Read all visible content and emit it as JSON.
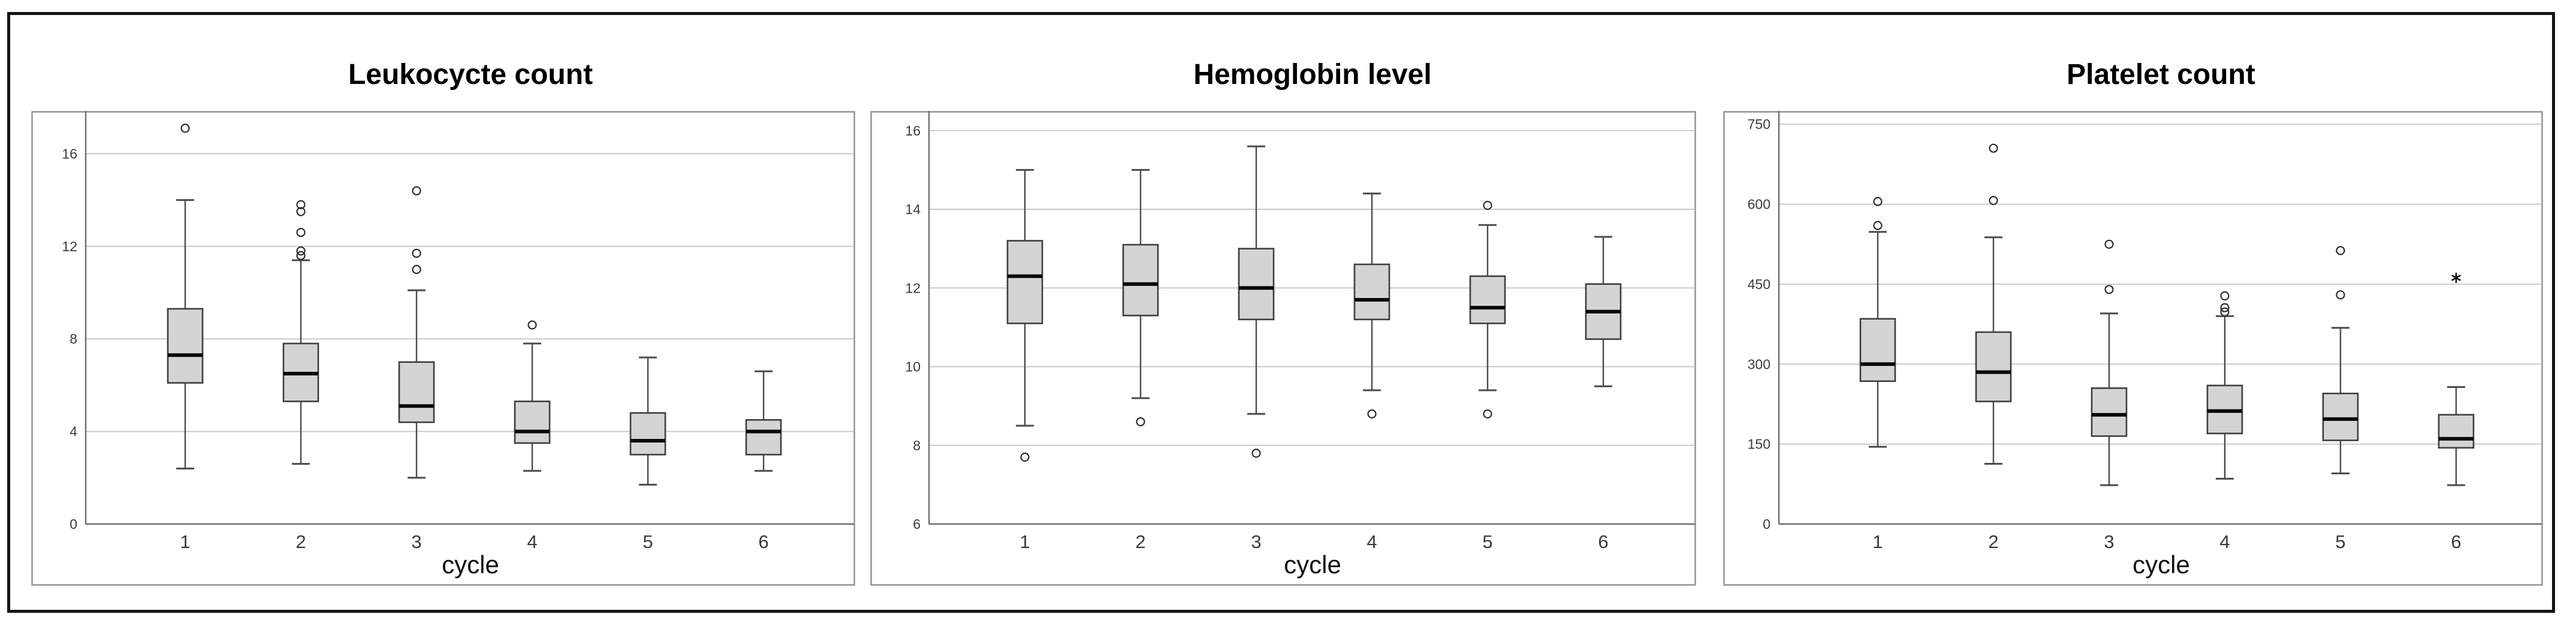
{
  "figure": {
    "background": "#ffffff",
    "border_color": "#141414",
    "box_fill_color": "#d4d4d4",
    "gridline_color": "#cacaca",
    "axis_color": "#6d6d6d",
    "outlier_marker": "circle-icon",
    "extreme_marker": "star-icon"
  },
  "chart_data": [
    {
      "type": "box",
      "title": "Leukocycte count",
      "xlabel": "cycle",
      "categories": [
        "1",
        "2",
        "3",
        "4",
        "5",
        "6"
      ],
      "yticks": [
        0,
        4,
        8,
        12,
        16
      ],
      "ylim": [
        0,
        17.85
      ],
      "grid": true,
      "boxes": [
        {
          "low": 2.4,
          "q1": 6.1,
          "median": 7.3,
          "q3": 9.3,
          "high": 14.0,
          "outliers": [
            17.1
          ],
          "extremes": []
        },
        {
          "low": 2.6,
          "q1": 5.3,
          "median": 6.5,
          "q3": 7.8,
          "high": 11.4,
          "outliers": [
            13.8,
            13.5,
            12.6,
            11.8,
            11.6
          ],
          "extremes": []
        },
        {
          "low": 2.0,
          "q1": 4.4,
          "median": 5.1,
          "q3": 7.0,
          "high": 10.1,
          "outliers": [
            14.4,
            11.7,
            11.0
          ],
          "extremes": []
        },
        {
          "low": 2.3,
          "q1": 3.5,
          "median": 4.0,
          "q3": 5.3,
          "high": 7.8,
          "outliers": [
            8.6
          ],
          "extremes": []
        },
        {
          "low": 1.7,
          "q1": 3.0,
          "median": 3.6,
          "q3": 4.8,
          "high": 7.2,
          "outliers": [],
          "extremes": []
        },
        {
          "low": 2.3,
          "q1": 3.0,
          "median": 4.0,
          "q3": 4.5,
          "high": 6.6,
          "outliers": [],
          "extremes": []
        }
      ]
    },
    {
      "type": "box",
      "title": "Hemoglobin level",
      "xlabel": "cycle",
      "categories": [
        "1",
        "2",
        "3",
        "4",
        "5",
        "6"
      ],
      "yticks": [
        6,
        8,
        10,
        12,
        14,
        16
      ],
      "ylim": [
        6,
        16.5
      ],
      "grid": true,
      "boxes": [
        {
          "low": 8.5,
          "q1": 11.1,
          "median": 12.3,
          "q3": 13.2,
          "high": 15.0,
          "outliers": [
            7.7
          ],
          "extremes": []
        },
        {
          "low": 9.2,
          "q1": 11.3,
          "median": 12.1,
          "q3": 13.1,
          "high": 15.0,
          "outliers": [
            8.6
          ],
          "extremes": []
        },
        {
          "low": 8.8,
          "q1": 11.2,
          "median": 12.0,
          "q3": 13.0,
          "high": 15.6,
          "outliers": [
            7.8
          ],
          "extremes": []
        },
        {
          "low": 9.4,
          "q1": 11.2,
          "median": 11.7,
          "q3": 12.6,
          "high": 14.4,
          "outliers": [
            8.8
          ],
          "extremes": []
        },
        {
          "low": 9.4,
          "q1": 11.1,
          "median": 11.5,
          "q3": 12.3,
          "high": 13.6,
          "outliers": [
            14.1,
            8.8
          ],
          "extremes": []
        },
        {
          "low": 9.5,
          "q1": 10.7,
          "median": 11.4,
          "q3": 12.1,
          "high": 13.3,
          "outliers": [],
          "extremes": []
        }
      ]
    },
    {
      "type": "box",
      "title": "Platelet count",
      "xlabel": "cycle",
      "categories": [
        "1",
        "2",
        "3",
        "4",
        "5",
        "6"
      ],
      "yticks": [
        0,
        150,
        300,
        450,
        600,
        750
      ],
      "ylim": [
        0,
        775
      ],
      "grid": true,
      "boxes": [
        {
          "low": 145,
          "q1": 268,
          "median": 300,
          "q3": 385,
          "high": 548,
          "outliers": [
            605,
            560
          ],
          "extremes": []
        },
        {
          "low": 113,
          "q1": 230,
          "median": 285,
          "q3": 360,
          "high": 538,
          "outliers": [
            705,
            607
          ],
          "extremes": []
        },
        {
          "low": 73,
          "q1": 165,
          "median": 205,
          "q3": 255,
          "high": 395,
          "outliers": [
            525,
            440
          ],
          "extremes": []
        },
        {
          "low": 85,
          "q1": 170,
          "median": 212,
          "q3": 260,
          "high": 390,
          "outliers": [
            428,
            406,
            398
          ],
          "extremes": []
        },
        {
          "low": 95,
          "q1": 157,
          "median": 197,
          "q3": 245,
          "high": 368,
          "outliers": [
            513,
            430
          ],
          "extremes": []
        },
        {
          "low": 73,
          "q1": 143,
          "median": 160,
          "q3": 205,
          "high": 257,
          "outliers": [],
          "extremes": [
            462
          ]
        }
      ]
    }
  ]
}
